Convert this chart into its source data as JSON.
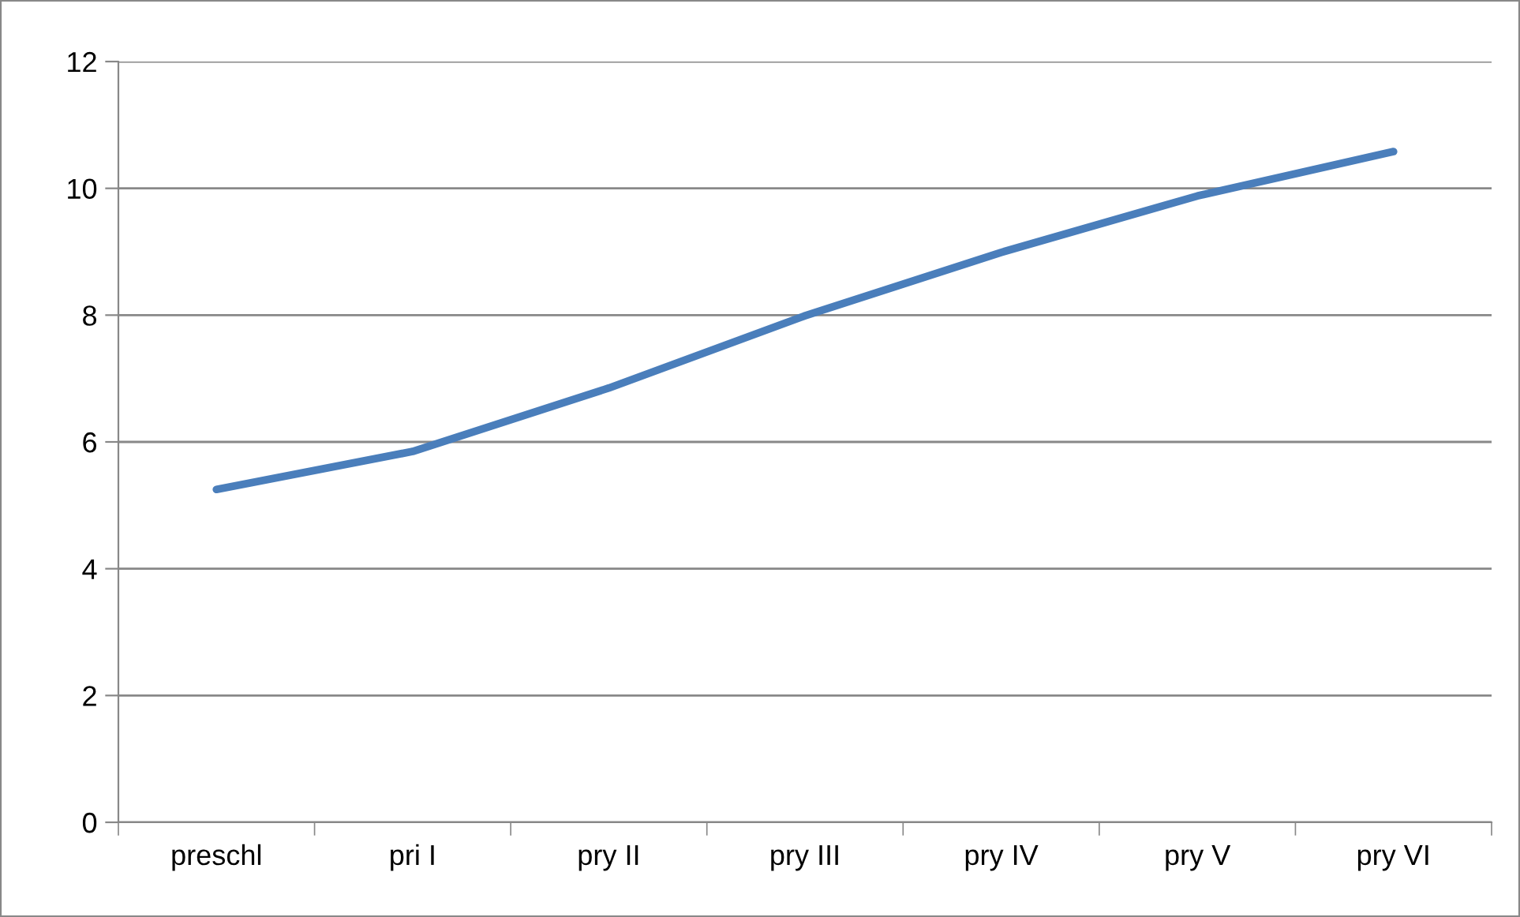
{
  "chart_data": {
    "type": "line",
    "categories": [
      "preschl",
      "pri I",
      "pry II",
      "pry III",
      "pry IV",
      "pry V",
      "pry VI"
    ],
    "series": [
      {
        "color": "#4a7ebb",
        "values": [
          5.25,
          5.85,
          6.85,
          7.99,
          8.99,
          9.88,
          10.58
        ]
      }
    ],
    "ylim": [
      0,
      12
    ],
    "yticks": [
      0,
      2,
      4,
      6,
      8,
      10,
      12
    ],
    "grid": "y",
    "legend": false,
    "marker": "none",
    "line_style": "solid"
  }
}
